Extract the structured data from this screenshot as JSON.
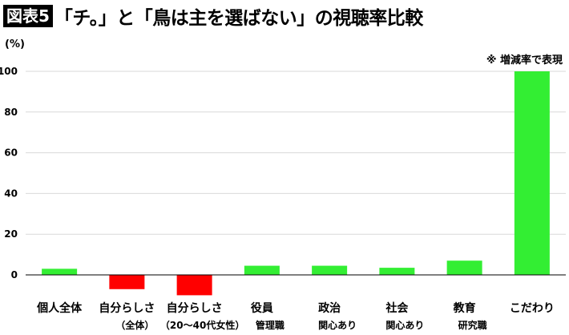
{
  "figure_label": "図表5",
  "title": "「チ。」と「鳥は主を選ばない」の視聴率比較",
  "unit": "(%)",
  "note": "※ 増減率で表現",
  "colors": {
    "positive": "#33ee33",
    "negative": "#ff0000",
    "axis": "#000000",
    "grid": "#d9d9d9"
  },
  "chart_data": {
    "type": "bar",
    "categories": [
      {
        "main": "個人全体",
        "sub": ""
      },
      {
        "main": "自分らしさ",
        "sub": "（全体）"
      },
      {
        "main": "自分らしさ",
        "sub": "（20〜40代女性）"
      },
      {
        "main": "役員",
        "sub": "管理職"
      },
      {
        "main": "政治",
        "sub": "関心あり"
      },
      {
        "main": "社会",
        "sub": "関心あり"
      },
      {
        "main": "教育",
        "sub": "研究職"
      },
      {
        "main": "こだわり",
        "sub": ""
      }
    ],
    "values": [
      3,
      -7,
      -10,
      4.5,
      4.5,
      3.5,
      7,
      100
    ],
    "ylim": [
      -10,
      100
    ],
    "yticks": [
      0,
      20,
      40,
      60,
      80,
      100
    ],
    "ylabel": "(%)",
    "grid": true,
    "legend": "none"
  }
}
